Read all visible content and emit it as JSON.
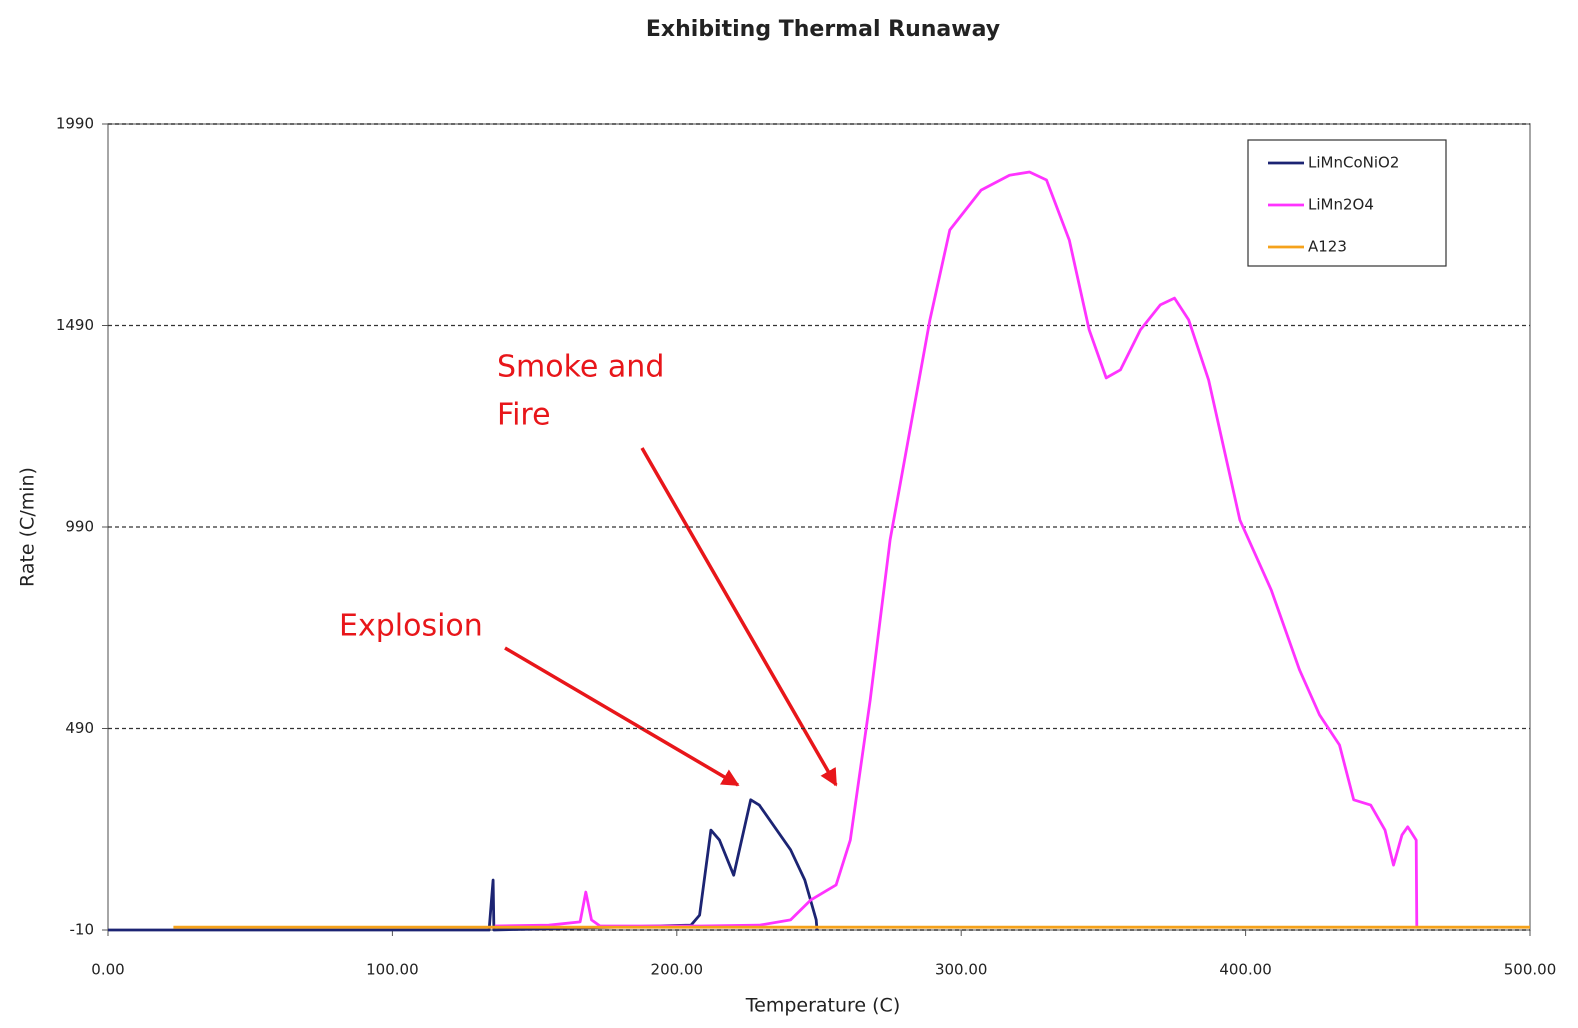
{
  "chart_data": {
    "type": "line",
    "title": "Exhibiting Thermal Runaway",
    "x_label": "Temperature (C)",
    "y_label": "Rate (C/min)",
    "xlim": [
      0,
      500
    ],
    "ylim": [
      -10,
      1990
    ],
    "xticks": [
      {
        "value": 0,
        "label": "0.00"
      },
      {
        "value": 100,
        "label": "100.00"
      },
      {
        "value": 200,
        "label": "200.00"
      },
      {
        "value": 300,
        "label": "300.00"
      },
      {
        "value": 400,
        "label": "400.00"
      },
      {
        "value": 500,
        "label": "500.00"
      }
    ],
    "yticks": [
      -10,
      490,
      990,
      1490,
      1990
    ],
    "grid": true,
    "legend": "upper right",
    "annotations": [
      {
        "text": [
          "Smoke and",
          "Fire"
        ]
      },
      {
        "text": [
          "Explosion"
        ]
      }
    ],
    "series": [
      {
        "name": "LiMnCoNiO2",
        "color": "#1c2473",
        "x": [
          0,
          134,
          135.4,
          135.7,
          205,
          208,
          212,
          215,
          220,
          226,
          229,
          240,
          245,
          249,
          249.3
        ],
        "values": [
          -10,
          -10,
          114,
          -10,
          2,
          27,
          238,
          213,
          126,
          313,
          300,
          189,
          114,
          15,
          -10
        ]
      },
      {
        "name": "LiMn2O4",
        "color": "#ff33ff",
        "x": [
          136,
          155,
          166,
          168,
          170,
          173,
          208,
          229,
          240,
          247,
          256,
          261,
          268,
          275,
          282,
          289,
          296,
          307,
          317,
          324,
          330,
          338,
          345,
          351,
          356,
          363,
          370,
          375,
          380,
          387,
          398,
          409,
          419,
          426,
          433,
          438,
          444,
          449,
          452,
          455,
          457,
          460,
          460.2
        ],
        "values": [
          0,
          2,
          10,
          84,
          15,
          0,
          0,
          2,
          15,
          64,
          102,
          213,
          561,
          958,
          1231,
          1504,
          1727,
          1826,
          1863,
          1871,
          1851,
          1702,
          1479,
          1360,
          1380,
          1479,
          1541,
          1558,
          1504,
          1355,
          1007,
          834,
          635,
          524,
          449,
          313,
          300,
          238,
          151,
          226,
          246,
          213,
          -5
        ]
      },
      {
        "name": "A123",
        "color": "#f5a21b",
        "x": [
          23,
          500
        ],
        "values": [
          -3,
          -3
        ]
      }
    ]
  }
}
